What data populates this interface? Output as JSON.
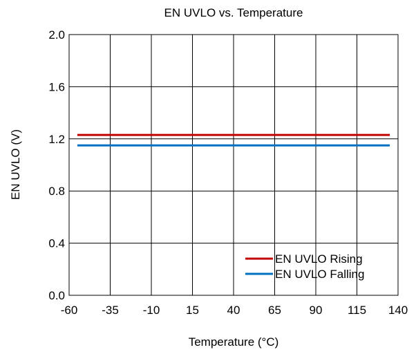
{
  "chart_data": {
    "type": "line",
    "title": "EN UVLO vs. Temperature",
    "xlabel": "Temperature (°C)",
    "ylabel": "EN UVLO (V)",
    "xlim": [
      -60,
      140
    ],
    "ylim": [
      0,
      2.0
    ],
    "xticks": [
      -60,
      -35,
      -10,
      15,
      40,
      65,
      90,
      115,
      140
    ],
    "xtick_labels": [
      "-60",
      "-35",
      "-10",
      "15",
      "40",
      "65",
      "90",
      "115",
      "140"
    ],
    "yticks": [
      0,
      0.4,
      0.8,
      1.2,
      1.6,
      2.0
    ],
    "ytick_labels": [
      "0.0",
      "0.4",
      "0.8",
      "1.2",
      "1.6",
      "2.0"
    ],
    "grid": true,
    "legend_position": "bottom-right",
    "series": [
      {
        "name": "EN UVLO Rising",
        "color": "#C00000",
        "x": [
          -55,
          0,
          25,
          50,
          85,
          125,
          135
        ],
        "y": [
          1.23,
          1.23,
          1.23,
          1.23,
          1.23,
          1.23,
          1.23
        ]
      },
      {
        "name": "EN UVLO Falling",
        "color": "#0070C0",
        "x": [
          -55,
          0,
          25,
          50,
          85,
          125,
          135
        ],
        "y": [
          1.15,
          1.15,
          1.15,
          1.15,
          1.15,
          1.15,
          1.15
        ]
      }
    ]
  }
}
